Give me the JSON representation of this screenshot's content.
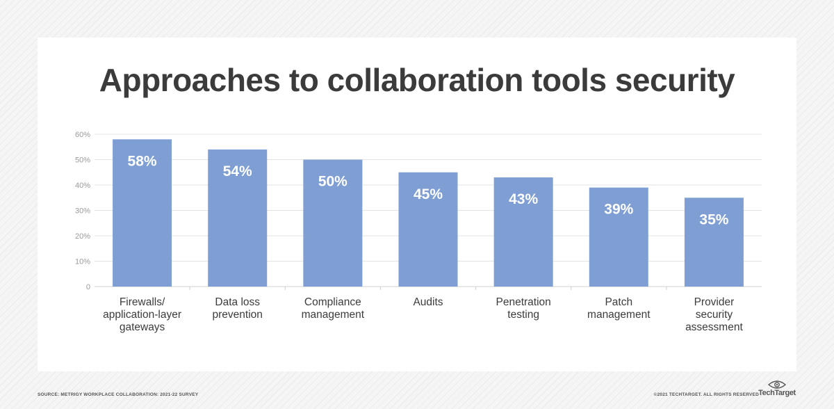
{
  "title": "Approaches to collaboration tools security",
  "footer": {
    "source": "SOURCE: METRIGY WORKPLACE COLLABORATION: 2021-22 SURVEY",
    "copyright": "©2021 TECHTARGET. ALL RIGHTS RESERVED",
    "brand": "TechTarget",
    "brand_icon": "eye-logo-icon"
  },
  "colors": {
    "bar": "#7f9fd4",
    "bar_label": "#ffffff",
    "title": "#3b3b3b",
    "grid": "#e3e3e3",
    "axis_text": "#999999",
    "category_text": "#3b3b3b"
  },
  "chart_data": {
    "type": "bar",
    "title": "Approaches to collaboration tools security",
    "categories": [
      [
        "Firewalls/",
        "application-layer",
        "gateways"
      ],
      [
        "Data loss",
        "prevention"
      ],
      [
        "Compliance",
        "management"
      ],
      [
        "Audits"
      ],
      [
        "Penetration",
        "testing"
      ],
      [
        "Patch",
        "management"
      ],
      [
        "Provider",
        "security",
        "assessment"
      ]
    ],
    "values": [
      58,
      54,
      50,
      45,
      43,
      39,
      35
    ],
    "value_labels": [
      "58%",
      "54%",
      "50%",
      "45%",
      "43%",
      "39%",
      "35%"
    ],
    "ylim": [
      0,
      60
    ],
    "yticks": [
      0,
      10,
      20,
      30,
      40,
      50,
      60
    ],
    "ytick_labels": [
      "0",
      "10%",
      "20%",
      "30%",
      "40%",
      "50%",
      "60%"
    ],
    "grid": true,
    "legend": "none"
  }
}
